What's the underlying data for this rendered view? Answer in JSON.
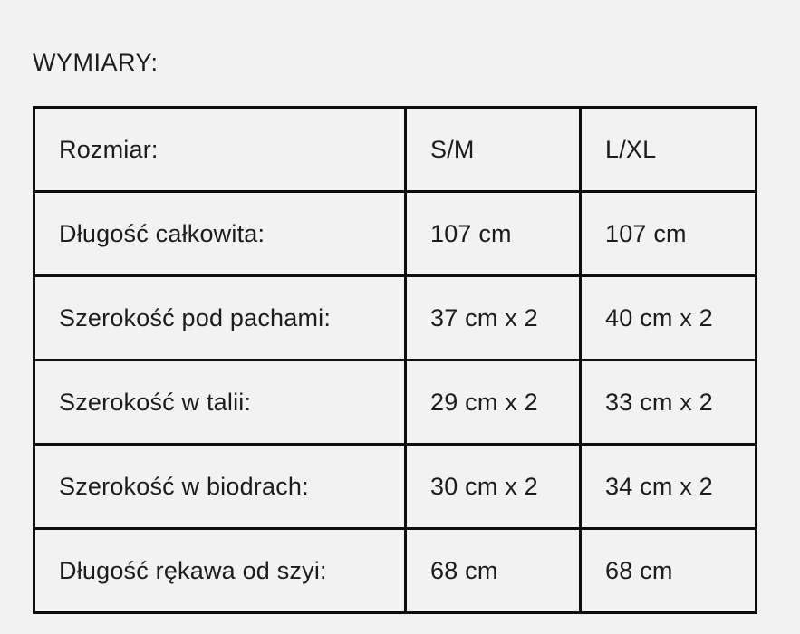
{
  "page": {
    "title": "WYMIARY:"
  },
  "colors": {
    "background": "#f2f2f2",
    "text": "#1c1c1c",
    "table_border": "#0d0d0d"
  },
  "size_table": {
    "columns": [
      "label",
      "size_sm",
      "size_lxl"
    ],
    "rows": [
      [
        "Rozmiar:",
        "S/M",
        "L/XL"
      ],
      [
        "Długość całkowita:",
        "107 cm",
        "107 cm"
      ],
      [
        "Szerokość pod pachami:",
        "37 cm x 2",
        "40 cm x 2"
      ],
      [
        "Szerokość w talii:",
        "29 cm x 2",
        "33 cm x 2"
      ],
      [
        "Szerokość w biodrach:",
        "30 cm x 2",
        "34 cm x 2"
      ],
      [
        "Długość rękawa od szyi:",
        "68 cm",
        "68 cm"
      ]
    ]
  }
}
